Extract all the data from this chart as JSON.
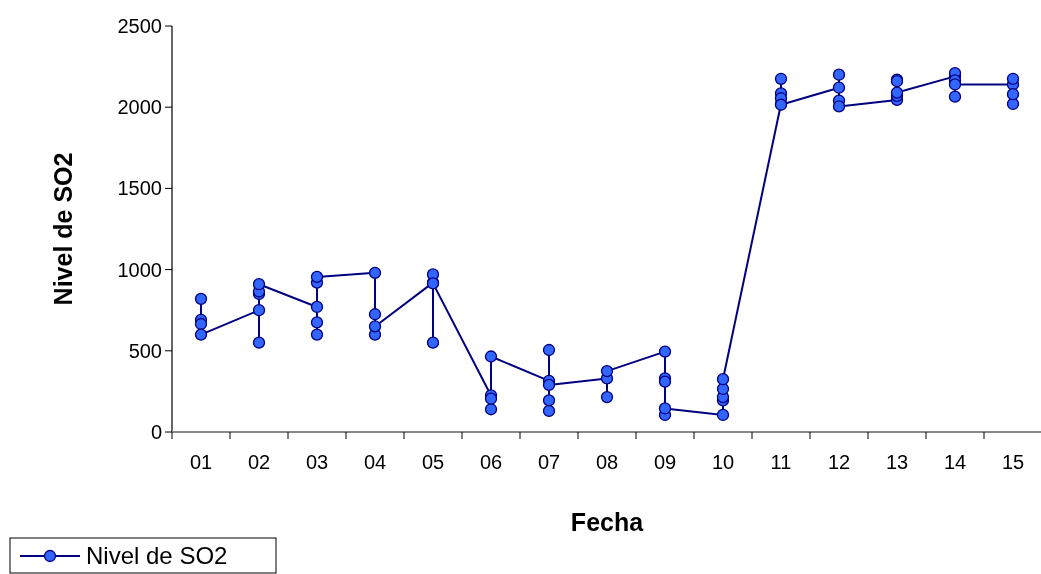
{
  "chart_data": {
    "type": "line",
    "xlabel": "Fecha",
    "ylabel": "Nivel de SO2",
    "xlim": [
      0.5,
      15.5
    ],
    "xticks": [
      {
        "value": 0.5,
        "label": null
      },
      {
        "value": 1,
        "label": "01"
      },
      {
        "value": 1.5,
        "label": null
      },
      {
        "value": 2,
        "label": "02"
      },
      {
        "value": 2.5,
        "label": null
      },
      {
        "value": 3,
        "label": "03"
      },
      {
        "value": 3.5,
        "label": null
      },
      {
        "value": 4,
        "label": "04"
      },
      {
        "value": 4.5,
        "label": null
      },
      {
        "value": 5,
        "label": "05"
      },
      {
        "value": 5.5,
        "label": null
      },
      {
        "value": 6,
        "label": "06"
      },
      {
        "value": 6.5,
        "label": null
      },
      {
        "value": 7,
        "label": "07"
      },
      {
        "value": 7.5,
        "label": null
      },
      {
        "value": 8,
        "label": "08"
      },
      {
        "value": 8.5,
        "label": null
      },
      {
        "value": 9,
        "label": "09"
      },
      {
        "value": 9.5,
        "label": null
      },
      {
        "value": 10,
        "label": "10"
      },
      {
        "value": 10.5,
        "label": null
      },
      {
        "value": 11,
        "label": "11"
      },
      {
        "value": 11.5,
        "label": null
      },
      {
        "value": 12,
        "label": "12"
      },
      {
        "value": 12.5,
        "label": null
      },
      {
        "value": 13,
        "label": "13"
      },
      {
        "value": 13.5,
        "label": null
      },
      {
        "value": 14,
        "label": "14"
      },
      {
        "value": 14.5,
        "label": null
      },
      {
        "value": 15,
        "label": "15"
      },
      {
        "value": 15.5,
        "label": null
      }
    ],
    "ylim": [
      0,
      2500
    ],
    "yticks": [
      0,
      500,
      1000,
      1500,
      2000,
      2500
    ],
    "grid": false,
    "legend": "bottom left",
    "marker": "circle",
    "line_style": "solid",
    "series": [
      {
        "name": "Nivel de SO2",
        "color": "#3366ff",
        "x": [
          1,
          1,
          1,
          1,
          2,
          2,
          2,
          2,
          2,
          3,
          3,
          3,
          3,
          3,
          4,
          4,
          4,
          4,
          5,
          5,
          5,
          5,
          6,
          6,
          6,
          6,
          7,
          7,
          7,
          7,
          7,
          8,
          8,
          8,
          9,
          9,
          9,
          9,
          9,
          10,
          10,
          10,
          10,
          10,
          11,
          11,
          11,
          11,
          11,
          12,
          12,
          12,
          12,
          13,
          13,
          13,
          13,
          13,
          14,
          14,
          14,
          14,
          14,
          15,
          15,
          15,
          15
        ],
        "values": [
          820,
          690,
          665,
          600,
          750,
          550,
          850,
          865,
          910,
          770,
          675,
          600,
          920,
          955,
          980,
          725,
          600,
          650,
          920,
          970,
          550,
          915,
          225,
          140,
          205,
          465,
          315,
          505,
          130,
          195,
          290,
          330,
          215,
          375,
          495,
          330,
          310,
          105,
          145,
          105,
          195,
          215,
          265,
          325,
          2020,
          2175,
          2085,
          2055,
          2015,
          2120,
          2200,
          2040,
          2005,
          2045,
          2170,
          2160,
          2070,
          2090,
          2190,
          2210,
          2065,
          2165,
          2140,
          2140,
          2175,
          2020,
          2080
        ]
      }
    ]
  }
}
